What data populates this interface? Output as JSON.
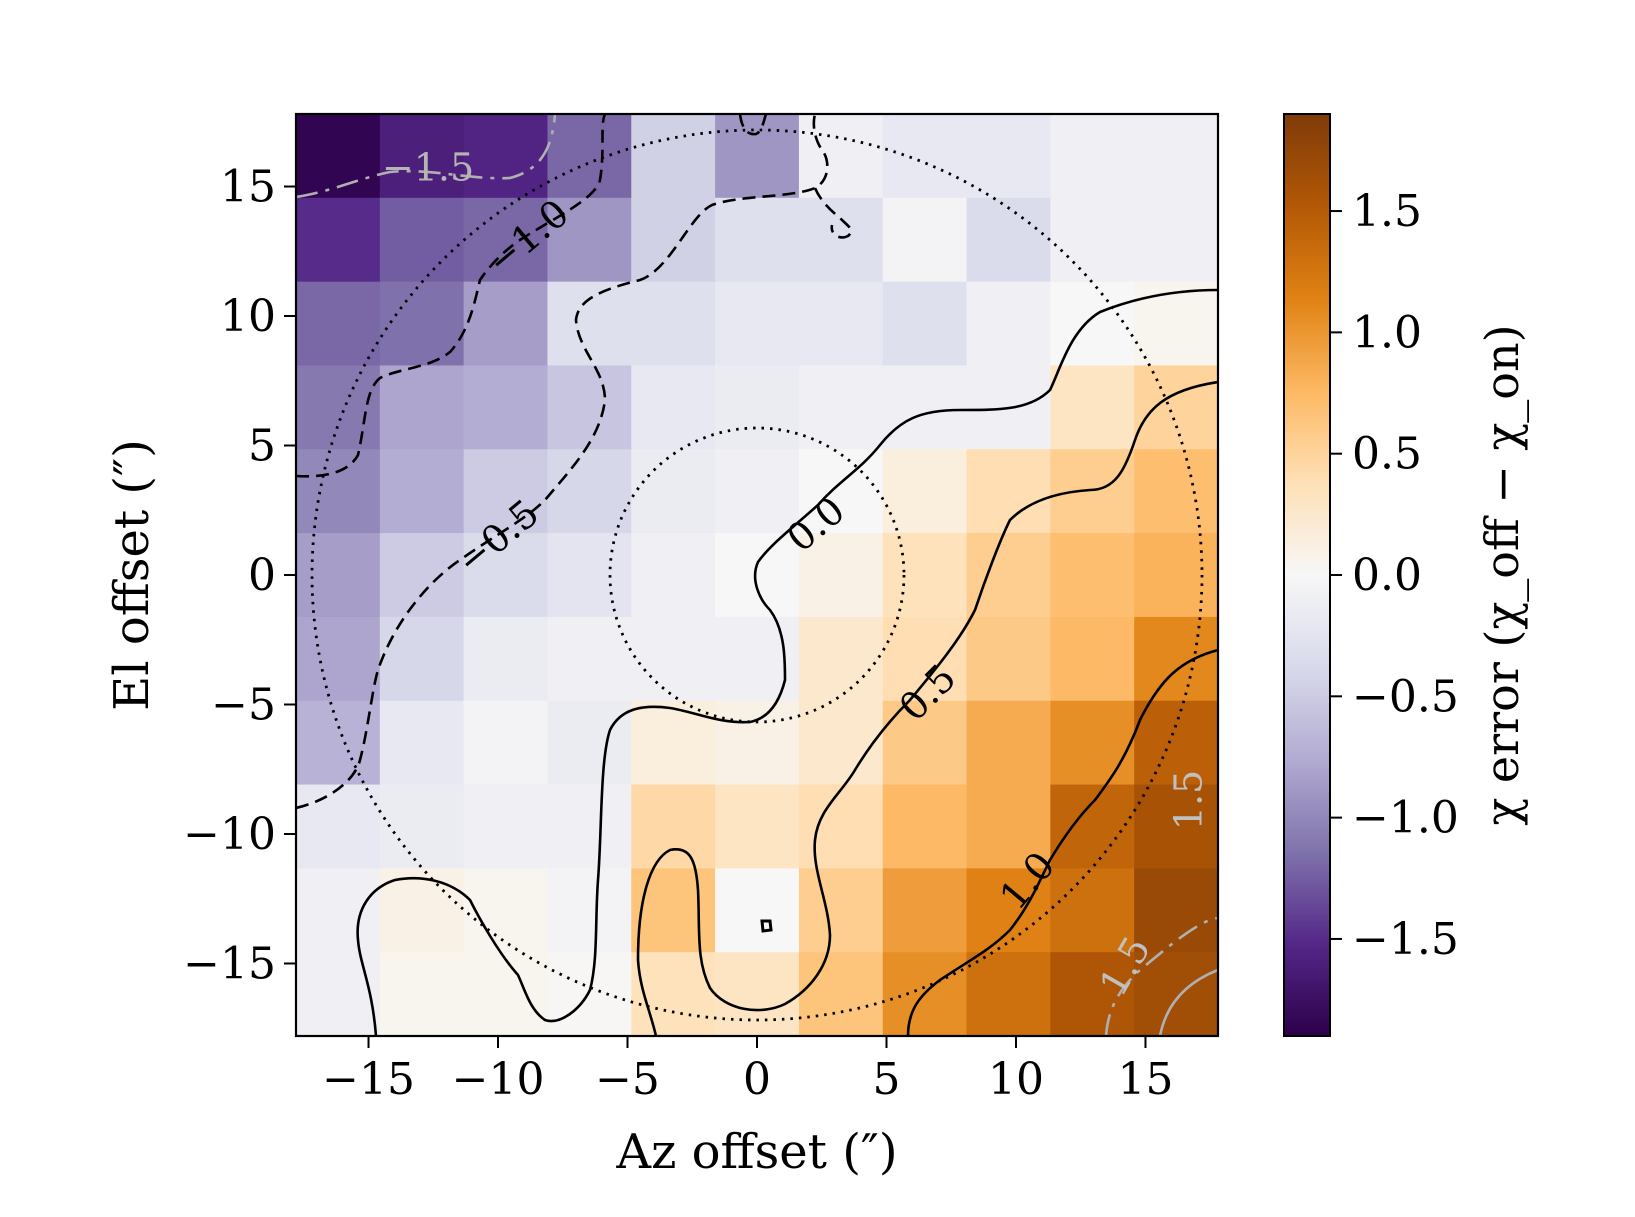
{
  "chart_data": {
    "type": "heatmap",
    "xlabel": "Az offset (″)",
    "ylabel": "El offset (″)",
    "colorbar_label": "χ error (χ_off − χ_on)",
    "xlim": [
      -17.8,
      17.8
    ],
    "ylim": [
      -17.8,
      17.8
    ],
    "x_ticks": [
      -15,
      -10,
      -5,
      0,
      5,
      10,
      15
    ],
    "y_ticks": [
      -15,
      -10,
      -5,
      0,
      5,
      10,
      15
    ],
    "x_tick_labels": [
      "−15",
      "−10",
      "−5",
      "0",
      "5",
      "10",
      "15"
    ],
    "y_tick_labels": [
      "−15",
      "−10",
      "−5",
      "0",
      "5",
      "10",
      "15"
    ],
    "colorbar_range": [
      -1.9,
      1.9
    ],
    "colorbar_ticks": [
      1.5,
      1.0,
      0.5,
      0.0,
      -0.5,
      -1.0,
      -1.5
    ],
    "colorbar_tick_labels": [
      "1.5",
      "1.0",
      "0.5",
      "0.0",
      "−0.5",
      "−1.0",
      "−1.5"
    ],
    "colormap": "PuOr_r",
    "colormap_colors": [
      "#2d004b",
      "#542788",
      "#8073ac",
      "#b2abd2",
      "#d8daeb",
      "#f7f7f7",
      "#fee0b6",
      "#fdb863",
      "#e08214",
      "#b35806",
      "#7f3b08"
    ],
    "grid_size": 11,
    "grid_rows_top_to_bottom": [
      [
        -1.85,
        -1.6,
        -1.55,
        -1.2,
        -0.45,
        -0.9,
        -0.1,
        -0.2,
        -0.2,
        -0.1,
        -0.1
      ],
      [
        -1.5,
        -1.25,
        -1.2,
        -0.9,
        -0.45,
        -0.3,
        -0.3,
        -0.05,
        -0.35,
        -0.1,
        -0.1
      ],
      [
        -1.2,
        -1.15,
        -0.85,
        -0.3,
        -0.3,
        -0.2,
        -0.2,
        -0.3,
        -0.1,
        0.0,
        0.05
      ],
      [
        -1.1,
        -0.8,
        -0.75,
        -0.55,
        -0.2,
        -0.15,
        -0.1,
        -0.1,
        -0.1,
        0.3,
        0.5
      ],
      [
        -1.0,
        -0.75,
        -0.5,
        -0.4,
        -0.15,
        -0.1,
        0.0,
        0.15,
        0.4,
        0.55,
        0.7
      ],
      [
        -0.85,
        -0.5,
        -0.35,
        -0.25,
        -0.1,
        0.0,
        0.1,
        0.35,
        0.55,
        0.7,
        0.8
      ],
      [
        -0.8,
        -0.4,
        -0.15,
        -0.1,
        -0.1,
        -0.1,
        0.25,
        0.4,
        0.6,
        0.75,
        1.1
      ],
      [
        -0.7,
        -0.2,
        -0.05,
        -0.15,
        0.15,
        0.1,
        0.25,
        0.6,
        0.85,
        1.05,
        1.45
      ],
      [
        -0.2,
        -0.15,
        -0.1,
        -0.1,
        0.45,
        0.3,
        0.4,
        0.75,
        0.85,
        1.4,
        1.6
      ],
      [
        -0.1,
        0.1,
        0.05,
        -0.05,
        0.65,
        0.0,
        0.55,
        0.95,
        1.15,
        1.3,
        1.7
      ],
      [
        -0.1,
        0.05,
        0.05,
        0.02,
        0.35,
        0.3,
        0.65,
        1.05,
        1.3,
        1.55,
        1.65
      ]
    ],
    "contour_levels": [
      -1.5,
      -1.0,
      -0.5,
      0.0,
      0.5,
      1.0,
      1.5
    ],
    "contour_labels": [
      "−1.5",
      "−1.0",
      "−0.5",
      "0.0",
      "0.5",
      "1.0",
      "1.5",
      "1.5",
      "1.5"
    ],
    "circle_radii": [
      5.7,
      17.2
    ]
  }
}
